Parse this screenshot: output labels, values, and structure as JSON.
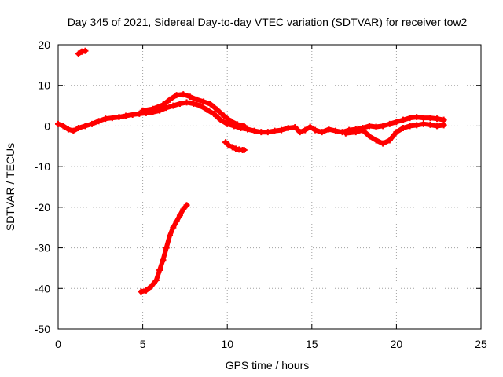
{
  "chart_data": {
    "type": "scatter",
    "title": "Day 345 of 2021, Sidereal Day-to-day VTEC variation (SDTVAR) for receiver tow2",
    "xlabel": "GPS time / hours",
    "ylabel": "SDTVAR / TECUs",
    "xlim": [
      0,
      25
    ],
    "ylim": [
      -50,
      20
    ],
    "xticks": [
      0,
      5,
      10,
      15,
      20,
      25
    ],
    "yticks": [
      -50,
      -40,
      -30,
      -20,
      -10,
      0,
      10,
      20
    ],
    "x_tick_labels": [
      "0",
      "5",
      "10",
      "15",
      "20",
      "25"
    ],
    "y_tick_labels": [
      "-50",
      "-40",
      "-30",
      "-20",
      "-10",
      "0",
      "10",
      "20"
    ],
    "grid": true,
    "series_color": "#ff0000",
    "series": [
      {
        "name": "main-trace",
        "points": [
          [
            0.0,
            0.5
          ],
          [
            0.3,
            0.0
          ],
          [
            0.6,
            -0.8
          ],
          [
            0.9,
            -1.2
          ],
          [
            1.2,
            -0.5
          ],
          [
            1.6,
            0.0
          ],
          [
            2.0,
            0.5
          ],
          [
            2.4,
            1.2
          ],
          [
            2.8,
            1.8
          ],
          [
            3.2,
            2.0
          ],
          [
            3.6,
            2.2
          ],
          [
            4.0,
            2.5
          ],
          [
            4.4,
            2.8
          ],
          [
            4.8,
            3.0
          ],
          [
            5.2,
            3.2
          ],
          [
            5.6,
            3.4
          ],
          [
            6.0,
            3.8
          ],
          [
            6.4,
            4.5
          ],
          [
            6.8,
            5.0
          ],
          [
            7.2,
            5.5
          ],
          [
            7.6,
            5.8
          ],
          [
            8.0,
            5.5
          ],
          [
            8.4,
            5.0
          ],
          [
            8.8,
            4.0
          ],
          [
            9.2,
            3.0
          ],
          [
            9.6,
            1.5
          ],
          [
            10.0,
            0.5
          ],
          [
            10.4,
            0.0
          ],
          [
            10.8,
            -0.5
          ],
          [
            11.2,
            -0.8
          ],
          [
            11.6,
            -1.2
          ],
          [
            12.0,
            -1.5
          ],
          [
            12.4,
            -1.5
          ],
          [
            12.8,
            -1.2
          ],
          [
            13.2,
            -1.0
          ],
          [
            13.6,
            -0.5
          ],
          [
            14.0,
            -0.3
          ],
          [
            14.3,
            -1.5
          ],
          [
            14.6,
            -1.0
          ],
          [
            14.9,
            -0.2
          ],
          [
            15.2,
            -1.0
          ],
          [
            15.6,
            -1.5
          ],
          [
            16.0,
            -0.8
          ],
          [
            16.4,
            -1.2
          ],
          [
            16.8,
            -1.5
          ],
          [
            17.2,
            -1.0
          ],
          [
            17.6,
            -0.8
          ],
          [
            18.0,
            -0.5
          ],
          [
            18.4,
            0.0
          ],
          [
            18.8,
            -0.2
          ],
          [
            19.2,
            0.0
          ],
          [
            19.6,
            0.5
          ],
          [
            20.0,
            1.0
          ],
          [
            20.4,
            1.5
          ],
          [
            20.8,
            2.0
          ],
          [
            21.2,
            2.2
          ],
          [
            21.6,
            2.0
          ],
          [
            22.0,
            2.0
          ],
          [
            22.4,
            1.8
          ],
          [
            22.8,
            1.5
          ]
        ]
      },
      {
        "name": "upper-envelope",
        "points": [
          [
            5.0,
            3.8
          ],
          [
            5.6,
            4.2
          ],
          [
            6.2,
            5.2
          ],
          [
            6.6,
            6.5
          ],
          [
            7.0,
            7.6
          ],
          [
            7.4,
            7.8
          ],
          [
            7.8,
            7.2
          ],
          [
            8.2,
            6.5
          ],
          [
            8.6,
            6.0
          ],
          [
            9.0,
            5.4
          ],
          [
            9.4,
            4.0
          ],
          [
            9.8,
            2.5
          ],
          [
            10.2,
            1.2
          ],
          [
            10.6,
            0.4
          ],
          [
            11.0,
            0.0
          ]
        ]
      },
      {
        "name": "lower-dip-envelope",
        "points": [
          [
            17.0,
            -1.8
          ],
          [
            17.6,
            -1.5
          ],
          [
            18.0,
            -1.0
          ],
          [
            18.4,
            -2.5
          ],
          [
            18.8,
            -3.5
          ],
          [
            19.2,
            -4.3
          ],
          [
            19.6,
            -3.5
          ],
          [
            20.0,
            -1.5
          ],
          [
            20.4,
            -0.5
          ],
          [
            20.8,
            0.0
          ],
          [
            21.2,
            0.2
          ],
          [
            21.6,
            0.5
          ],
          [
            22.0,
            0.3
          ],
          [
            22.4,
            0.0
          ],
          [
            22.8,
            0.2
          ]
        ]
      },
      {
        "name": "offset-segment",
        "points": [
          [
            9.9,
            -4.0
          ],
          [
            10.1,
            -4.8
          ],
          [
            10.3,
            -5.2
          ],
          [
            10.5,
            -5.6
          ],
          [
            10.7,
            -5.8
          ],
          [
            10.9,
            -5.9
          ],
          [
            11.0,
            -5.9
          ]
        ]
      },
      {
        "name": "isolated-segment",
        "points": [
          [
            1.2,
            17.8
          ],
          [
            1.4,
            18.3
          ],
          [
            1.6,
            18.5
          ]
        ]
      },
      {
        "name": "descending-segment",
        "points": [
          [
            4.9,
            -40.8
          ],
          [
            5.2,
            -40.5
          ],
          [
            5.5,
            -39.5
          ],
          [
            5.8,
            -38.0
          ],
          [
            6.0,
            -35.5
          ],
          [
            6.2,
            -33.0
          ],
          [
            6.4,
            -30.0
          ],
          [
            6.6,
            -27.0
          ],
          [
            6.8,
            -25.0
          ],
          [
            7.0,
            -23.5
          ],
          [
            7.2,
            -22.0
          ],
          [
            7.4,
            -20.5
          ],
          [
            7.6,
            -19.5
          ]
        ]
      }
    ]
  }
}
